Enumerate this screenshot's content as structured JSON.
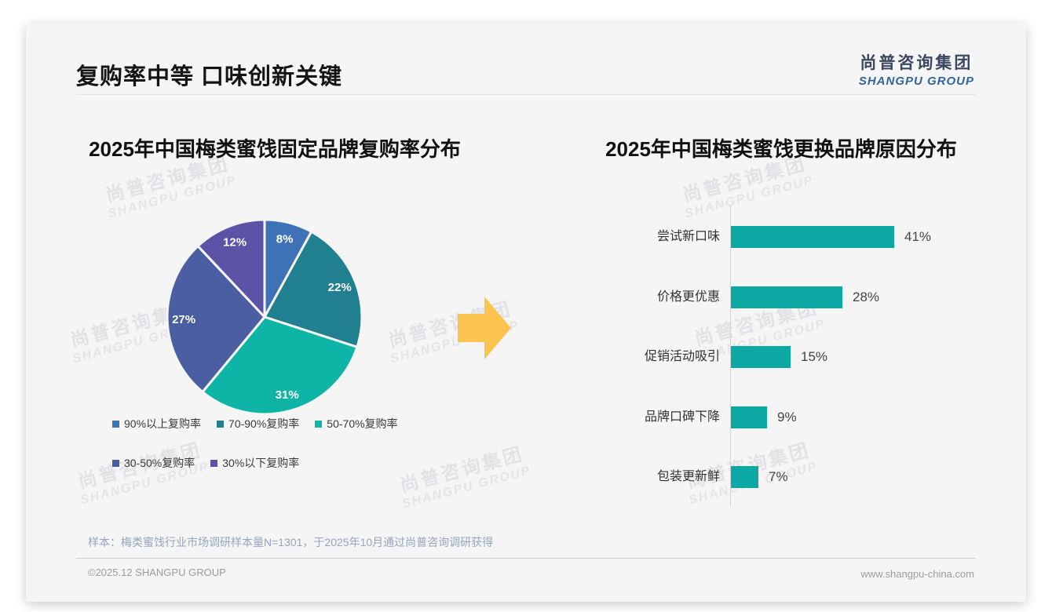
{
  "page": {
    "title": "复购率中等 口味创新关键",
    "logo": {
      "cn": "尚普咨询集团",
      "en": "SHANGPU GROUP"
    },
    "watermark": {
      "cn": "尚普咨询集团",
      "en": "SHANGPU GROUP"
    },
    "note": "样本：梅类蜜饯行业市场调研样本量N=1301，于2025年10月通过尚普咨询调研获得",
    "footer_left": "©2025.12 SHANGPU GROUP",
    "footer_right": "www.shangpu-china.com"
  },
  "colors": {
    "card_bg": "#F5F5F6",
    "arrow": "#FBC44F",
    "bar": "#0CA8A4",
    "pie": [
      "#3D73B6",
      "#21808F",
      "#0EB4A5",
      "#4A5EA1",
      "#5C52A6"
    ]
  },
  "chart_data": [
    {
      "type": "pie",
      "title": "2025年中国梅类蜜饯固定品牌复购率分布",
      "categories": [
        "90%以上复购率",
        "70-90%复购率",
        "50-70%复购率",
        "30-50%复购率",
        "30%以下复购率"
      ],
      "values": [
        8,
        22,
        31,
        27,
        12
      ],
      "data_labels": [
        "8%",
        "22%",
        "31%",
        "27%",
        "12%"
      ],
      "colors": [
        "#3D73B6",
        "#21808F",
        "#0EB4A5",
        "#4A5EA1",
        "#5C52A6"
      ],
      "start_angle_deg": 0,
      "direction": "clockwise",
      "legend_position": "bottom"
    },
    {
      "type": "bar",
      "orientation": "horizontal",
      "title": "2025年中国梅类蜜饯更换品牌原因分布",
      "categories": [
        "尝试新口味",
        "价格更优惠",
        "促销活动吸引",
        "品牌口碑下降",
        "包装更新鲜"
      ],
      "values": [
        41,
        28,
        15,
        9,
        7
      ],
      "data_labels": [
        "41%",
        "28%",
        "15%",
        "9%",
        "7%"
      ],
      "bar_color": "#0CA8A4",
      "grid": false,
      "value_axis_visible": false
    }
  ]
}
